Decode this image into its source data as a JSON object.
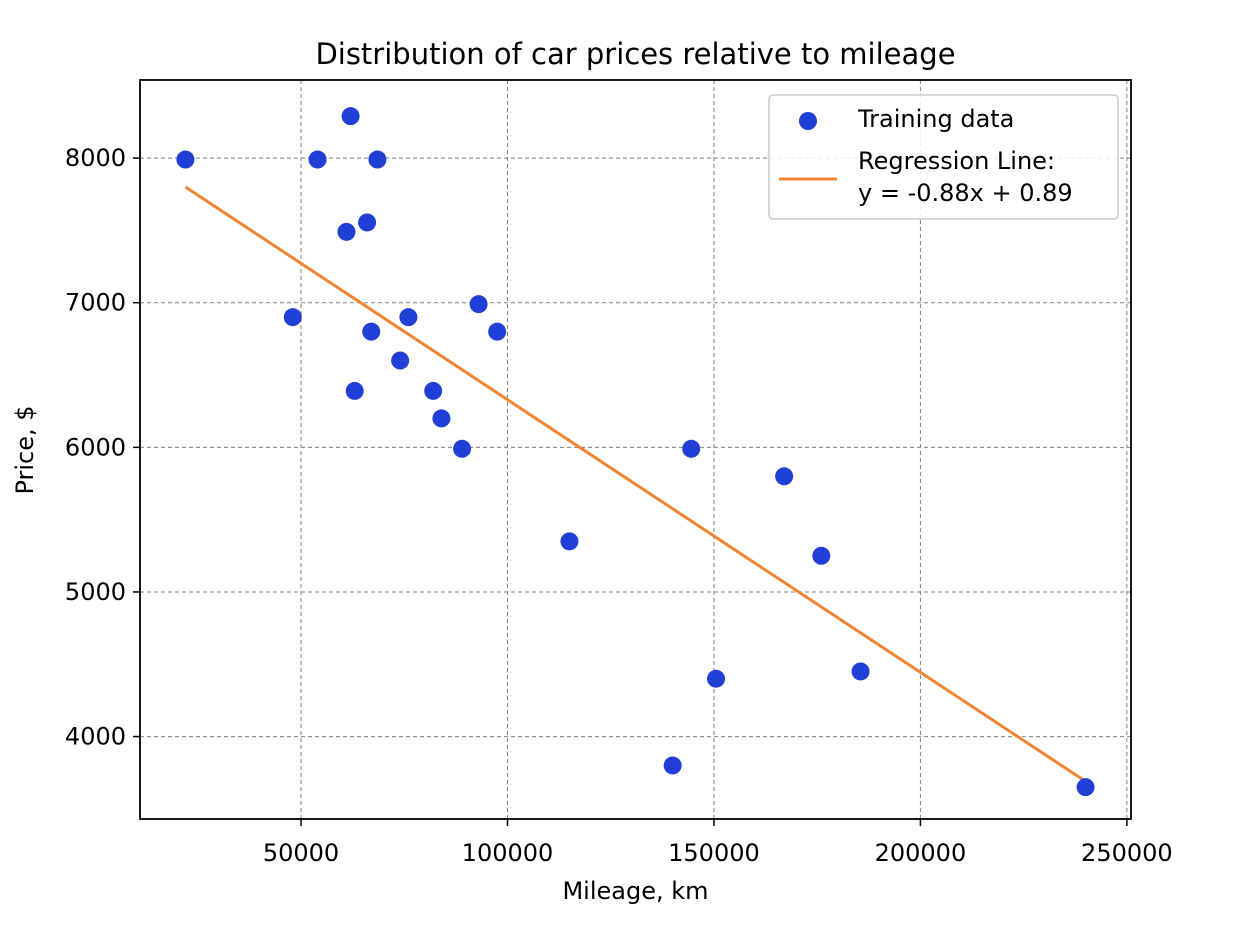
{
  "chart_data": {
    "type": "scatter",
    "title": "Distribution of car prices relative to mileage",
    "xlabel": "Mileage, km",
    "ylabel": "Price, $",
    "xlim": [
      11000,
      251000
    ],
    "ylim": [
      3430,
      8540
    ],
    "xticks": [
      50000,
      100000,
      150000,
      200000,
      250000
    ],
    "yticks": [
      4000,
      5000,
      6000,
      7000,
      8000
    ],
    "grid": true,
    "legend_position": "top-right",
    "series": [
      {
        "name": "Training data",
        "kind": "scatter",
        "color": "#1f3fd6",
        "points": [
          [
            22000,
            7990
          ],
          [
            48000,
            6900
          ],
          [
            54000,
            7990
          ],
          [
            61000,
            7490
          ],
          [
            62000,
            8290
          ],
          [
            63000,
            6390
          ],
          [
            66000,
            7555
          ],
          [
            67000,
            6800
          ],
          [
            68500,
            7990
          ],
          [
            74000,
            6600
          ],
          [
            76000,
            6900
          ],
          [
            82000,
            6390
          ],
          [
            84000,
            6200
          ],
          [
            89000,
            5990
          ],
          [
            93000,
            6990
          ],
          [
            97500,
            6800
          ],
          [
            115000,
            5350
          ],
          [
            140000,
            3800
          ],
          [
            144500,
            5990
          ],
          [
            150500,
            4400
          ],
          [
            167000,
            5800
          ],
          [
            176000,
            5250
          ],
          [
            185500,
            4450
          ],
          [
            240000,
            3650
          ]
        ]
      },
      {
        "name": "Regression Line:",
        "name_line2": "y = -0.88x + 0.89",
        "kind": "line",
        "color": "#ef8532",
        "points": [
          [
            22000,
            7800
          ],
          [
            240000,
            3690
          ]
        ]
      }
    ]
  }
}
